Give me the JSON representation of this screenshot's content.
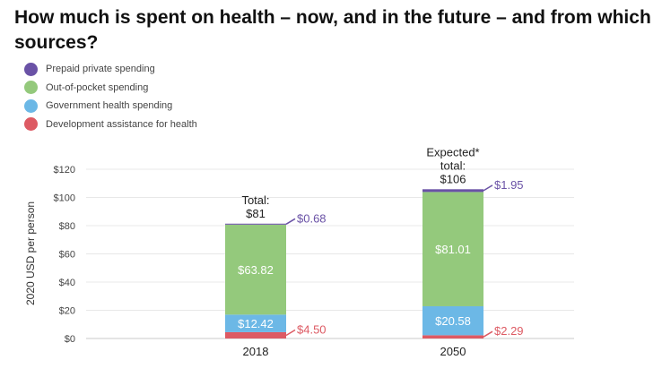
{
  "title": "How much is spent on health – now, and in the future – and from which sources?",
  "colors": {
    "prepaid": "#6a52a6",
    "oop": "#94c97c",
    "gov": "#6cb8e6",
    "dah": "#dd5a63"
  },
  "chart_data": {
    "type": "bar",
    "stacked": true,
    "title": "How much is spent on health – now, and in the future – and from which sources?",
    "xlabel": "",
    "ylabel": "2020 USD per person",
    "ylim": [
      0,
      120
    ],
    "yticks": [
      0,
      20,
      40,
      60,
      80,
      100,
      120
    ],
    "ytick_labels": [
      "$0",
      "$20",
      "$40",
      "$60",
      "$80",
      "$100",
      "$120"
    ],
    "categories": [
      "2018",
      "2050"
    ],
    "legend": [
      {
        "key": "prepaid",
        "label": "Prepaid private spending"
      },
      {
        "key": "oop",
        "label": "Out-of-pocket spending"
      },
      {
        "key": "gov",
        "label": "Government health spending"
      },
      {
        "key": "dah",
        "label": "Development assistance for health"
      }
    ],
    "series": [
      {
        "key": "dah",
        "name": "Development assistance for health",
        "values": [
          4.5,
          2.29
        ],
        "labels": [
          "$4.50",
          "$2.29"
        ]
      },
      {
        "key": "gov",
        "name": "Government health spending",
        "values": [
          12.42,
          20.58
        ],
        "labels": [
          "$12.42",
          "$20.58"
        ]
      },
      {
        "key": "oop",
        "name": "Out-of-pocket spending",
        "values": [
          63.82,
          81.01
        ],
        "labels": [
          "$63.82",
          "$81.01"
        ]
      },
      {
        "key": "prepaid",
        "name": "Prepaid private spending",
        "values": [
          0.68,
          1.95
        ],
        "labels": [
          "$0.68",
          "$1.95"
        ]
      }
    ],
    "totals": [
      {
        "lines": [
          "Total:",
          "$81"
        ],
        "value": 81
      },
      {
        "lines": [
          "Expected*",
          "total:",
          "$106"
        ],
        "value": 106
      }
    ]
  }
}
